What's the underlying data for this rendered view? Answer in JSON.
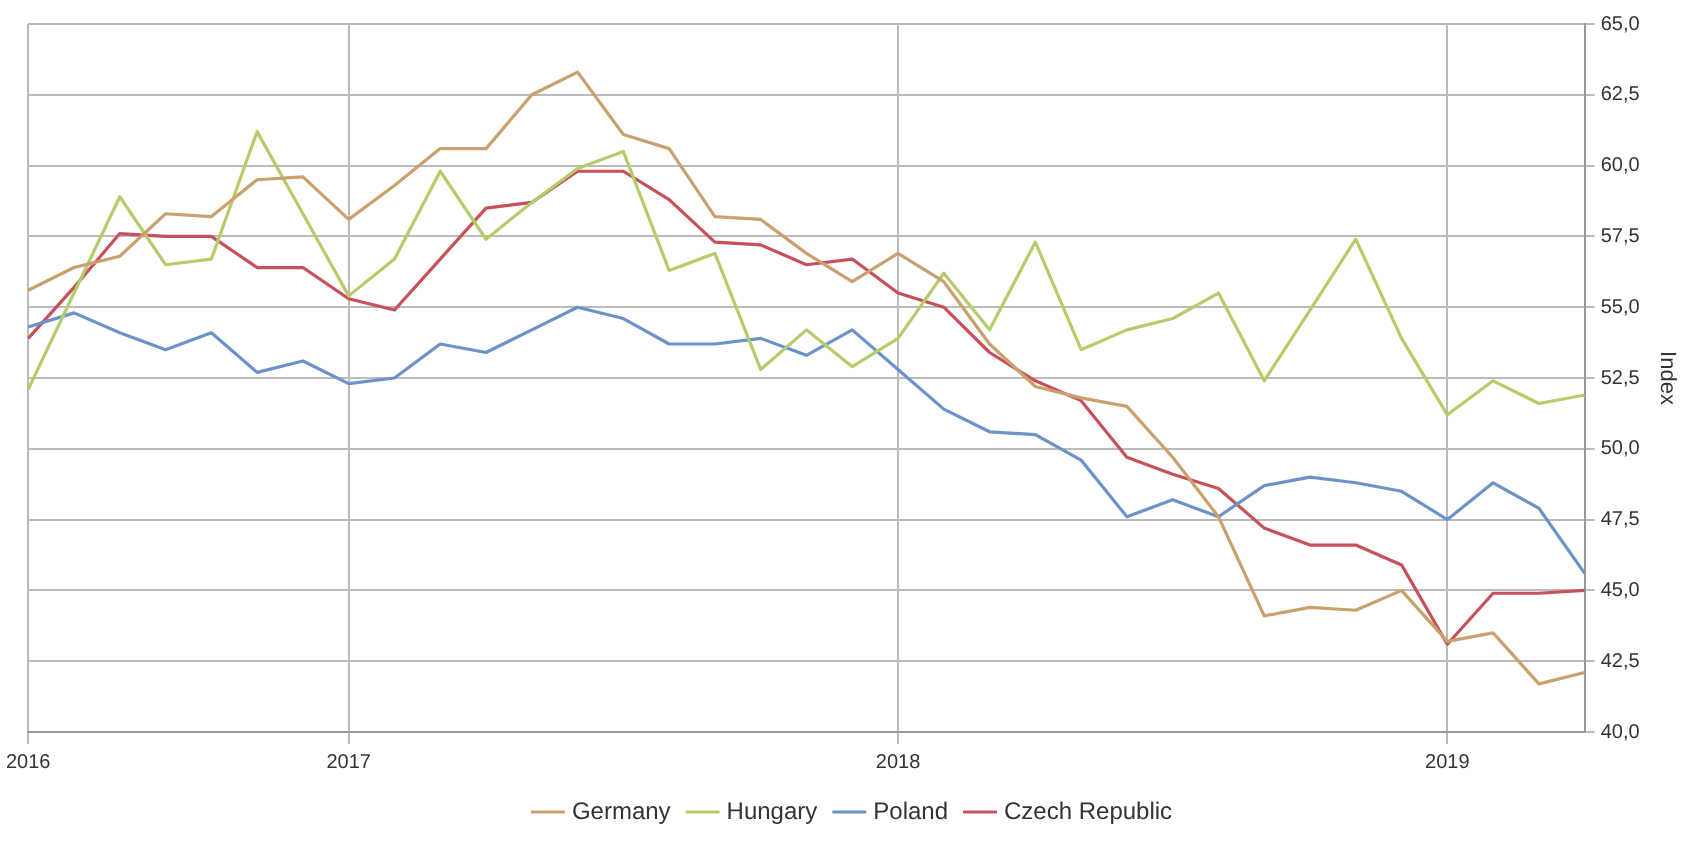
{
  "chart_data": {
    "type": "line",
    "ylabel": "Index",
    "categories": [
      "2016",
      null,
      null,
      null,
      null,
      null,
      null,
      "2017",
      null,
      null,
      null,
      null,
      null,
      null,
      null,
      null,
      null,
      null,
      null,
      "2018",
      null,
      null,
      null,
      null,
      null,
      null,
      null,
      null,
      null,
      null,
      null,
      "2019",
      null,
      null,
      null
    ],
    "ylim": [
      40,
      65
    ],
    "yticks": [
      {
        "value": 40,
        "label": "40,0"
      },
      {
        "value": 42.5,
        "label": "42,5"
      },
      {
        "value": 45,
        "label": "45,0"
      },
      {
        "value": 47.5,
        "label": "47,5"
      },
      {
        "value": 50,
        "label": "50,0"
      },
      {
        "value": 52.5,
        "label": "52,5"
      },
      {
        "value": 55,
        "label": "55,0"
      },
      {
        "value": 57.5,
        "label": "57,5"
      },
      {
        "value": 60,
        "label": "60,0"
      },
      {
        "value": 62.5,
        "label": "62,5"
      },
      {
        "value": 65,
        "label": "65,0"
      }
    ],
    "grid": true,
    "legend": "bottom",
    "marker": "none",
    "line_style": "solid",
    "series": [
      {
        "name": "Germany",
        "color": "#c9a06e",
        "values": [
          55.6,
          56.4,
          56.8,
          58.3,
          58.2,
          59.5,
          59.6,
          58.1,
          59.3,
          60.6,
          60.6,
          62.5,
          63.3,
          61.1,
          60.6,
          58.2,
          58.1,
          56.9,
          55.9,
          56.9,
          55.9,
          53.7,
          52.2,
          51.8,
          51.5,
          49.7,
          47.6,
          44.1,
          44.4,
          44.3,
          45.0,
          43.2,
          43.5,
          41.7,
          42.1
        ]
      },
      {
        "name": "Hungary",
        "color": "#b5cc6a",
        "values": [
          52.1,
          55.5,
          58.9,
          56.5,
          56.7,
          61.2,
          58.3,
          55.4,
          56.7,
          59.8,
          57.4,
          58.7,
          59.9,
          60.5,
          56.3,
          56.9,
          52.8,
          54.2,
          52.9,
          53.9,
          56.2,
          54.2,
          57.3,
          53.5,
          54.2,
          54.6,
          55.5,
          52.4,
          54.9,
          57.4,
          53.9,
          51.2,
          52.4,
          51.6,
          51.9
        ]
      },
      {
        "name": "Poland",
        "color": "#6b93c8",
        "values": [
          54.3,
          54.8,
          54.1,
          53.5,
          54.1,
          52.7,
          53.1,
          52.3,
          52.5,
          53.7,
          53.4,
          54.2,
          55.0,
          54.6,
          53.7,
          53.7,
          53.9,
          53.3,
          54.2,
          52.8,
          51.4,
          50.6,
          50.5,
          49.6,
          47.6,
          48.2,
          47.6,
          48.7,
          49.0,
          48.8,
          48.5,
          47.5,
          48.8,
          47.9,
          45.6
        ]
      },
      {
        "name": "Czech Republic",
        "color": "#c8505a",
        "values": [
          53.9,
          55.7,
          57.6,
          57.5,
          57.5,
          56.4,
          56.4,
          55.3,
          54.9,
          56.7,
          58.5,
          58.7,
          59.8,
          59.8,
          58.8,
          57.3,
          57.2,
          56.5,
          56.7,
          55.5,
          55.0,
          53.4,
          52.4,
          51.7,
          49.7,
          49.1,
          48.6,
          47.2,
          46.6,
          46.6,
          45.9,
          43.1,
          44.9,
          44.9,
          45.0
        ]
      }
    ]
  }
}
